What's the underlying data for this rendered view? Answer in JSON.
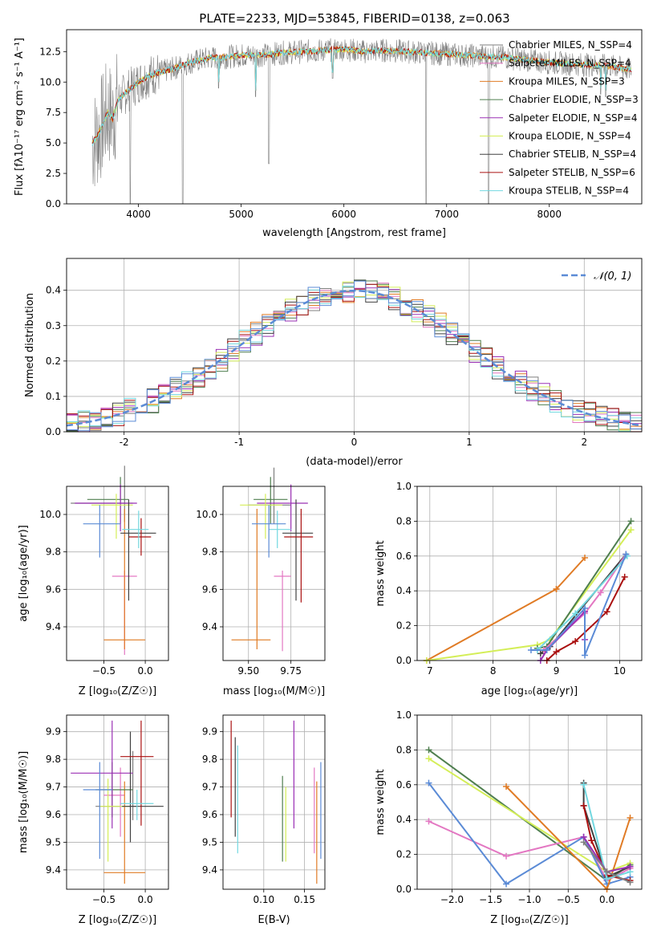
{
  "figure": {
    "title": "PLATE=2233, MJD=53845, FIBERID=0138, z=0.063"
  },
  "colors": {
    "Chabrier MILES": "#7f7f7f",
    "Salpeter MILES": "#e377c2",
    "Kroupa MILES": "#e07b25",
    "Chabrier ELODIE": "#4f7f4f",
    "Salpeter ELODIE": "#9b30b5",
    "Kroupa ELODIE": "#d4ee58",
    "Chabrier STELIB": "#404040",
    "Salpeter STELIB": "#aa1010",
    "Kroupa STELIB": "#72d8e0",
    "extra": "#5b8bd6"
  },
  "chart_data": [
    {
      "id": "spectrum",
      "type": "line",
      "xlabel": "wavelength [Angstrom, rest frame]",
      "ylabel": "Flux [fλ10⁻¹⁷ erg cm⁻² s⁻¹ A⁻¹]",
      "xlim": [
        3300,
        8900
      ],
      "ylim": [
        0,
        14.3
      ],
      "xticks": [
        4000,
        5000,
        6000,
        7000,
        8000
      ],
      "yticks": [
        0.0,
        2.5,
        5.0,
        7.5,
        10.0,
        12.5
      ],
      "legend_position": "right",
      "legend": [
        "Chabrier MILES, N_SSP=4",
        "Salpeter MILES, N_SSP=4",
        "Kroupa MILES, N_SSP=3",
        "Chabrier ELODIE, N_SSP=3",
        "Salpeter ELODIE, N_SSP=4",
        "Kroupa ELODIE, N_SSP=4",
        "Chabrier STELIB, N_SSP=4",
        "Salpeter STELIB, N_SSP=6",
        "Kroupa STELIB, N_SSP=4"
      ],
      "legend_series": [
        "Chabrier MILES",
        "Salpeter MILES",
        "Kroupa MILES",
        "Chabrier ELODIE",
        "Salpeter ELODIE",
        "Kroupa ELODIE",
        "Chabrier STELIB",
        "Salpeter STELIB",
        "Kroupa STELIB"
      ],
      "continuum": {
        "x": [
          3550,
          3600,
          3650,
          3700,
          3750,
          3800,
          3900,
          4000,
          4100,
          4200,
          4300,
          4400,
          4500,
          4600,
          4700,
          4800,
          4900,
          5000,
          5200,
          5400,
          5600,
          5800,
          6000,
          6200,
          6400,
          6600,
          6800,
          7000,
          7200,
          7400,
          7600,
          7800,
          8000,
          8200,
          8400,
          8600,
          8800
        ],
        "y": [
          5.0,
          5.5,
          6.5,
          7.5,
          7.0,
          8.5,
          9.3,
          10.0,
          10.5,
          10.8,
          11.0,
          11.3,
          11.6,
          11.8,
          12.0,
          12.0,
          12.1,
          12.2,
          12.2,
          12.4,
          12.5,
          12.6,
          12.7,
          12.5,
          12.6,
          12.5,
          12.4,
          12.3,
          12.2,
          12.1,
          12.0,
          11.8,
          11.6,
          11.5,
          11.4,
          11.3,
          11.0
        ]
      },
      "dips": [
        {
          "x": 3920,
          "y": 0.0
        },
        {
          "x": 4430,
          "y": 0.0
        },
        {
          "x": 4780,
          "y": 9.5
        },
        {
          "x": 5140,
          "y": 8.8
        },
        {
          "x": 5270,
          "y": 3.3
        },
        {
          "x": 5890,
          "y": 10.3
        },
        {
          "x": 6800,
          "y": 0.0
        },
        {
          "x": 7410,
          "y": 0.0
        },
        {
          "x": 8500,
          "y": 9.0
        },
        {
          "x": 8550,
          "y": 8.8
        }
      ]
    },
    {
      "id": "residuals",
      "type": "line",
      "xlabel": "(data-model)/error",
      "ylabel": "Normed distribution",
      "xlim": [
        -2.5,
        2.5
      ],
      "ylim": [
        0,
        0.49
      ],
      "xticks": [
        -2,
        -1,
        0,
        1,
        2
      ],
      "yticks": [
        0.0,
        0.1,
        0.2,
        0.3,
        0.4
      ],
      "legend": [
        "𝒩(0, 1)"
      ],
      "legend_position": "top-right",
      "bin_width": 0.1
    },
    {
      "id": "age-vs-Z",
      "type": "scatter",
      "xlabel": "Z [log₁₀(Z/Z☉)]",
      "ylabel": "age  [log₁₀(age/yr)]",
      "xlim": [
        -0.95,
        0.28
      ],
      "ylim": [
        9.22,
        10.15
      ],
      "xticks": [
        -0.5,
        0.0
      ],
      "xtick_labels": [
        "−0.5",
        "0.0"
      ],
      "yticks": [
        9.4,
        9.6,
        9.8,
        10.0
      ],
      "points": [
        {
          "series": "Chabrier MILES",
          "x": -0.25,
          "y": 10.06,
          "xerr": [
            0.65,
            0.1
          ],
          "yerr": [
            0.1,
            0.2
          ]
        },
        {
          "series": "Salpeter MILES",
          "x": -0.25,
          "y": 9.67,
          "xerr": [
            0.15,
            0.15
          ],
          "yerr": [
            0.42,
            0.03
          ]
        },
        {
          "series": "Kroupa MILES",
          "x": -0.25,
          "y": 9.33,
          "xerr": [
            0.25,
            0.25
          ],
          "yerr": [
            0.05,
            0.7
          ]
        },
        {
          "series": "Chabrier ELODIE",
          "x": -0.3,
          "y": 10.08,
          "xerr": [
            0.4,
            0.1
          ],
          "yerr": [
            0.13,
            0.12
          ]
        },
        {
          "series": "Salpeter ELODIE",
          "x": -0.3,
          "y": 10.06,
          "xerr": [
            0.55,
            0.2
          ],
          "yerr": [
            0.15,
            0.1
          ]
        },
        {
          "series": "Kroupa ELODIE",
          "x": -0.35,
          "y": 10.05,
          "xerr": [
            0.3,
            0.2
          ],
          "yerr": [
            0.18,
            0.06
          ]
        },
        {
          "series": "Chabrier STELIB",
          "x": -0.2,
          "y": 9.9,
          "xerr": [
            0.1,
            0.33
          ],
          "yerr": [
            0.36,
            0.18
          ]
        },
        {
          "series": "Salpeter STELIB",
          "x": -0.05,
          "y": 9.88,
          "xerr": [
            0.15,
            0.12
          ],
          "yerr": [
            0.1,
            0.1
          ]
        },
        {
          "series": "Kroupa STELIB",
          "x": -0.08,
          "y": 9.92,
          "xerr": [
            0.2,
            0.12
          ],
          "yerr": [
            0.1,
            0.1
          ]
        },
        {
          "series": "extra",
          "x": -0.55,
          "y": 9.95,
          "xerr": [
            0.2,
            0.25
          ],
          "yerr": [
            0.18,
            0.1
          ]
        }
      ]
    },
    {
      "id": "age-vs-mass",
      "type": "scatter",
      "xlabel": "mass [log₁₀(M/M☉)]",
      "ylabel": "",
      "xlim": [
        9.35,
        9.95
      ],
      "ylim": [
        9.22,
        10.15
      ],
      "xticks": [
        9.5,
        9.75
      ],
      "xtick_labels": [
        "9.50",
        "9.75"
      ],
      "yticks": [
        9.4,
        9.6,
        9.8,
        10.0
      ],
      "points": [
        {
          "series": "Chabrier MILES",
          "x": 9.65,
          "y": 10.05,
          "xerr": [
            0.15,
            0.1
          ],
          "yerr": [
            0.1,
            0.2
          ]
        },
        {
          "series": "Salpeter MILES",
          "x": 9.7,
          "y": 9.67,
          "xerr": [
            0.05,
            0.05
          ],
          "yerr": [
            0.4,
            0.03
          ]
        },
        {
          "series": "Kroupa MILES",
          "x": 9.55,
          "y": 9.33,
          "xerr": [
            0.15,
            0.08
          ],
          "yerr": [
            0.05,
            0.7
          ]
        },
        {
          "series": "Chabrier ELODIE",
          "x": 9.63,
          "y": 10.08,
          "xerr": [
            0.1,
            0.1
          ],
          "yerr": [
            0.13,
            0.12
          ]
        },
        {
          "series": "Salpeter ELODIE",
          "x": 9.75,
          "y": 10.06,
          "xerr": [
            0.2,
            0.1
          ],
          "yerr": [
            0.15,
            0.1
          ]
        },
        {
          "series": "Kroupa ELODIE",
          "x": 9.6,
          "y": 10.05,
          "xerr": [
            0.15,
            0.1
          ],
          "yerr": [
            0.18,
            0.06
          ]
        },
        {
          "series": "Chabrier STELIB",
          "x": 9.78,
          "y": 9.9,
          "xerr": [
            0.08,
            0.1
          ],
          "yerr": [
            0.36,
            0.18
          ]
        },
        {
          "series": "Salpeter STELIB",
          "x": 9.81,
          "y": 9.88,
          "xerr": [
            0.1,
            0.07
          ],
          "yerr": [
            0.35,
            0.15
          ]
        },
        {
          "series": "Kroupa STELIB",
          "x": 9.67,
          "y": 9.92,
          "xerr": [
            0.05,
            0.08
          ],
          "yerr": [
            0.1,
            0.1
          ]
        },
        {
          "series": "extra",
          "x": 9.62,
          "y": 9.95,
          "xerr": [
            0.1,
            0.1
          ],
          "yerr": [
            0.18,
            0.1
          ]
        }
      ]
    },
    {
      "id": "weight-vs-age",
      "type": "line",
      "xlabel": "age  [log₁₀(age/yr)]",
      "ylabel": "mass weight",
      "xlim": [
        6.8,
        10.35
      ],
      "ylim": [
        0,
        1.0
      ],
      "xticks": [
        7,
        8,
        9,
        10
      ],
      "yticks": [
        0.0,
        0.2,
        0.4,
        0.6,
        0.8,
        1.0
      ],
      "series": [
        {
          "name": "Kroupa MILES",
          "x": [
            9.0,
            9.45
          ],
          "y": [
            0.41,
            0.59
          ]
        },
        {
          "name": "Kroupa MILES",
          "x": [
            6.95,
            9.0
          ],
          "y": [
            0.0,
            0.41
          ]
        },
        {
          "name": "Kroupa ELODIE",
          "x": [
            6.95,
            8.7,
            8.9,
            10.18
          ],
          "y": [
            0.0,
            0.09,
            0.12,
            0.75
          ]
        },
        {
          "name": "Chabrier ELODIE",
          "x": [
            8.7,
            8.85,
            10.18
          ],
          "y": [
            0.07,
            0.08,
            0.8
          ]
        },
        {
          "name": "Chabrier STELIB",
          "x": [
            8.75,
            8.9,
            10.1
          ],
          "y": [
            0.04,
            0.08,
            0.61
          ]
        },
        {
          "name": "Salpeter STELIB",
          "x": [
            8.85,
            9.0,
            9.3,
            9.8,
            10.08
          ],
          "y": [
            0.0,
            0.05,
            0.11,
            0.28,
            0.48
          ]
        },
        {
          "name": "Salpeter MILES",
          "x": [
            8.8,
            9.45,
            9.7,
            10.1
          ],
          "y": [
            0.06,
            0.27,
            0.39,
            0.61
          ]
        },
        {
          "name": "Salpeter ELODIE",
          "x": [
            8.75,
            8.85,
            9.45,
            9.45
          ],
          "y": [
            0.0,
            0.06,
            0.28,
            0.12
          ]
        },
        {
          "name": "Kroupa STELIB",
          "x": [
            8.7,
            9.3,
            10.12
          ],
          "y": [
            0.06,
            0.27,
            0.6
          ]
        },
        {
          "name": "extra",
          "x": [
            8.6,
            8.85,
            9.45,
            9.45,
            10.1
          ],
          "y": [
            0.06,
            0.06,
            0.3,
            0.03,
            0.61
          ]
        }
      ]
    },
    {
      "id": "mass-vs-Z",
      "type": "scatter",
      "xlabel": "Z [log₁₀(Z/Z☉)]",
      "ylabel": "mass [log₁₀(M/M☉)]",
      "xlim": [
        -0.95,
        0.28
      ],
      "ylim": [
        9.33,
        9.96
      ],
      "xticks": [
        -0.5,
        0.0
      ],
      "xtick_labels": [
        "−0.5",
        "0.0"
      ],
      "yticks": [
        9.4,
        9.5,
        9.6,
        9.7,
        9.8,
        9.9
      ],
      "points": [
        {
          "series": "Chabrier MILES",
          "x": -0.15,
          "y": 9.63,
          "xerr": [
            0.45,
            0.05
          ],
          "yerr": [
            0.05,
            0.2
          ]
        },
        {
          "series": "Salpeter MILES",
          "x": -0.3,
          "y": 9.67,
          "xerr": [
            0.2,
            0.05
          ],
          "yerr": [
            0.15,
            0.1
          ]
        },
        {
          "series": "Kroupa MILES",
          "x": -0.25,
          "y": 9.39,
          "xerr": [
            0.25,
            0.25
          ],
          "yerr": [
            0.04,
            0.33
          ]
        },
        {
          "series": "Chabrier ELODIE",
          "x": -0.4,
          "y": 9.69,
          "xerr": [
            0.2,
            0.25
          ],
          "yerr": [
            0.1,
            0.1
          ]
        },
        {
          "series": "Salpeter ELODIE",
          "x": -0.4,
          "y": 9.75,
          "xerr": [
            0.5,
            0.25
          ],
          "yerr": [
            0.2,
            0.19
          ]
        },
        {
          "series": "Kroupa ELODIE",
          "x": -0.45,
          "y": 9.63,
          "xerr": [
            0.1,
            0.25
          ],
          "yerr": [
            0.2,
            0.1
          ]
        },
        {
          "series": "Chabrier STELIB",
          "x": -0.18,
          "y": 9.63,
          "xerr": [
            0.1,
            0.4
          ],
          "yerr": [
            0.13,
            0.27
          ]
        },
        {
          "series": "Salpeter STELIB",
          "x": -0.05,
          "y": 9.81,
          "xerr": [
            0.25,
            0.15
          ],
          "yerr": [
            0.25,
            0.13
          ]
        },
        {
          "series": "Kroupa STELIB",
          "x": -0.1,
          "y": 9.64,
          "xerr": [
            0.2,
            0.2
          ],
          "yerr": [
            0.06,
            0.05
          ]
        },
        {
          "series": "extra",
          "x": -0.55,
          "y": 9.69,
          "xerr": [
            0.2,
            0.15
          ],
          "yerr": [
            0.25,
            0.1
          ]
        }
      ]
    },
    {
      "id": "mass-vs-ebv",
      "type": "scatter",
      "xlabel": "E(B-V)",
      "ylabel": "",
      "xlim": [
        0.05,
        0.175
      ],
      "ylim": [
        9.33,
        9.96
      ],
      "xticks": [
        0.1,
        0.15
      ],
      "xtick_labels": [
        "0.10",
        "0.15"
      ],
      "yticks": [
        9.4,
        9.5,
        9.6,
        9.7,
        9.8,
        9.9
      ],
      "points": [
        {
          "series": "Salpeter STELIB",
          "x": 0.06,
          "yrange": [
            9.59,
            9.94
          ]
        },
        {
          "series": "Chabrier STELIB",
          "x": 0.065,
          "yrange": [
            9.52,
            9.88
          ]
        },
        {
          "series": "Kroupa STELIB",
          "x": 0.068,
          "yrange": [
            9.46,
            9.85
          ]
        },
        {
          "series": "Chabrier ELODIE",
          "x": 0.123,
          "yrange": [
            9.43,
            9.74
          ]
        },
        {
          "series": "Kroupa ELODIE",
          "x": 0.127,
          "yrange": [
            9.43,
            9.7
          ]
        },
        {
          "series": "Salpeter ELODIE",
          "x": 0.137,
          "yrange": [
            9.55,
            9.94
          ]
        },
        {
          "series": "Salpeter MILES",
          "x": 0.162,
          "yrange": [
            9.46,
            9.77
          ]
        },
        {
          "series": "Kroupa MILES",
          "x": 0.165,
          "yrange": [
            9.35,
            9.72
          ]
        },
        {
          "series": "extra",
          "x": 0.17,
          "yrange": [
            9.44,
            9.79
          ]
        }
      ]
    },
    {
      "id": "weight-vs-Z",
      "type": "line",
      "xlabel": "Z [log₁₀(Z/Z☉)]",
      "ylabel": "mass weight",
      "xlim": [
        -2.45,
        0.45
      ],
      "ylim": [
        0,
        1.0
      ],
      "xticks": [
        -2.0,
        -1.5,
        -1.0,
        -0.5,
        0.0
      ],
      "xtick_labels": [
        "−2.0",
        "−1.5",
        "−1.0",
        "−0.5",
        "0.0"
      ],
      "yticks": [
        0.0,
        0.2,
        0.4,
        0.6,
        0.8,
        1.0
      ],
      "series": [
        {
          "name": "Chabrier ELODIE",
          "x": [
            -2.3,
            0.0,
            0.3
          ],
          "y": [
            0.8,
            0.05,
            0.14
          ]
        },
        {
          "name": "Kroupa ELODIE",
          "x": [
            -2.3,
            0.0,
            0.3
          ],
          "y": [
            0.75,
            0.1,
            0.15
          ]
        },
        {
          "name": "Salpeter MILES",
          "x": [
            -2.3,
            -1.3,
            -0.3,
            0.0,
            0.3
          ],
          "y": [
            0.39,
            0.19,
            0.3,
            0.05,
            0.12
          ]
        },
        {
          "name": "extra",
          "x": [
            -2.3,
            -1.3,
            -0.3,
            0.0,
            0.3
          ],
          "y": [
            0.61,
            0.03,
            0.3,
            0.03,
            0.07
          ]
        },
        {
          "name": "Kroupa MILES",
          "x": [
            -1.3,
            0.0,
            0.3
          ],
          "y": [
            0.59,
            0.0,
            0.41
          ]
        },
        {
          "name": "Chabrier STELIB",
          "x": [
            -0.3,
            -0.3,
            0.0,
            0.3
          ],
          "y": [
            0.61,
            0.48,
            0.07,
            0.13
          ]
        },
        {
          "name": "Salpeter STELIB",
          "x": [
            -0.3,
            -0.2,
            0.0,
            0.3
          ],
          "y": [
            0.48,
            0.28,
            0.08,
            0.05
          ]
        },
        {
          "name": "Kroupa STELIB",
          "x": [
            -0.3,
            0.0,
            0.3
          ],
          "y": [
            0.6,
            0.06,
            0.1
          ]
        },
        {
          "name": "Salpeter ELODIE",
          "x": [
            -0.3,
            0.0,
            0.3
          ],
          "y": [
            0.3,
            0.1,
            0.13
          ]
        },
        {
          "name": "Chabrier MILES",
          "x": [
            -0.3,
            0.0,
            0.3
          ],
          "y": [
            0.27,
            0.1,
            0.04
          ]
        }
      ]
    }
  ]
}
